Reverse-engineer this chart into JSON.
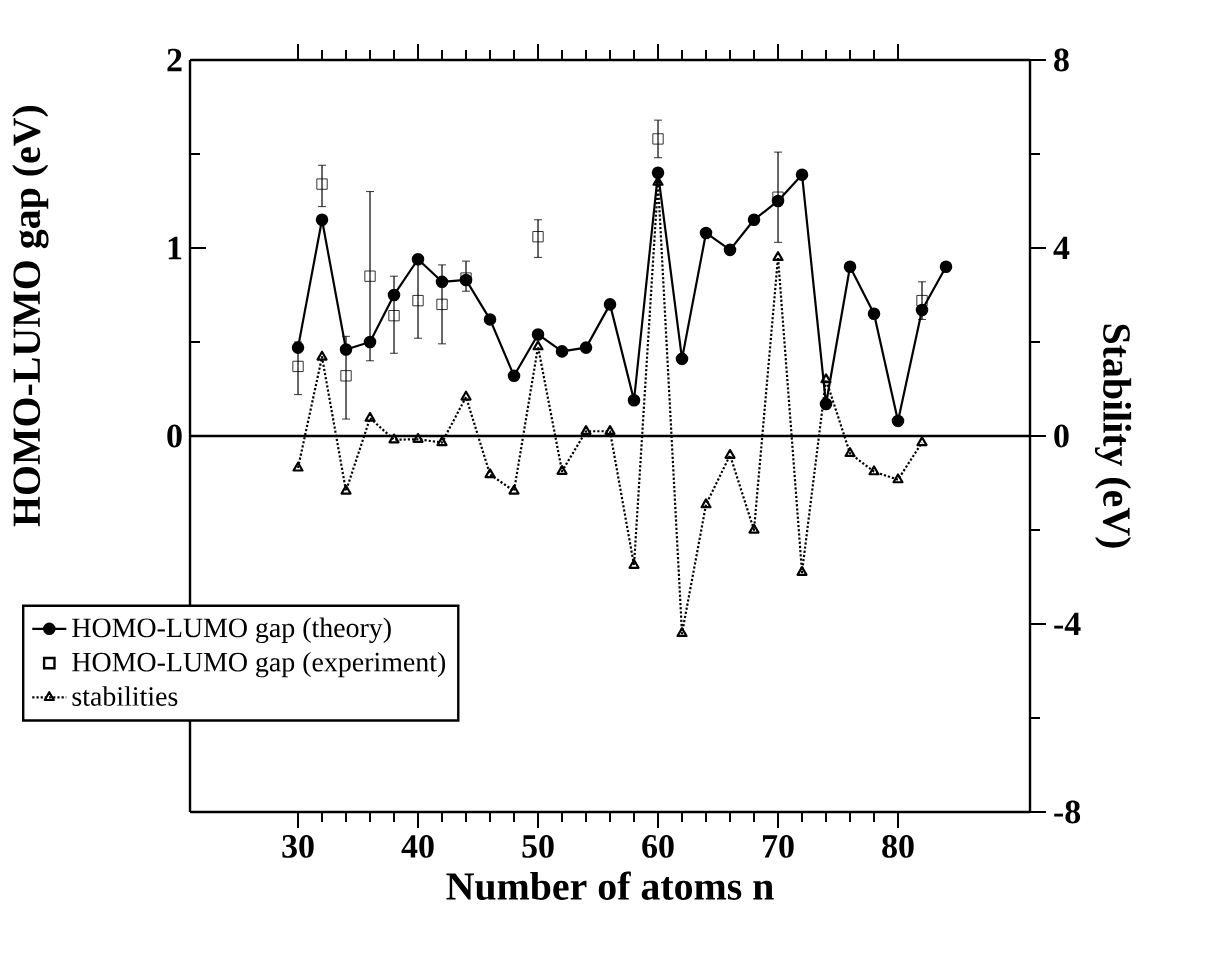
{
  "chart_data": {
    "type": "line",
    "xlabel": "Number of atoms n",
    "ylabel": "HOMO-LUMO gap (eV)",
    "y2label": "Stability (eV)",
    "xlim": [
      21,
      91
    ],
    "xticks": [
      30,
      40,
      50,
      60,
      70,
      80
    ],
    "ylim": [
      -2,
      2
    ],
    "yticks": [
      0,
      1,
      2
    ],
    "y2lim": [
      -8,
      8
    ],
    "y2ticks": [
      -8,
      -4,
      0,
      4,
      8
    ],
    "legend": "bottom left",
    "grid": false,
    "ref_lines": [
      {
        "axis": "y",
        "value": 0,
        "line_style": "solid"
      }
    ],
    "series": [
      {
        "name": "HOMO-LUMO gap (theory)",
        "color": "#000000",
        "marker": "circle",
        "line_style": "solid",
        "x": [
          30,
          32,
          34,
          36,
          38,
          40,
          42,
          44,
          46,
          48,
          50,
          52,
          54,
          56,
          58,
          60,
          62,
          64,
          66,
          68,
          70,
          72,
          74,
          76,
          78,
          80,
          82,
          84
        ],
        "values": [
          0.47,
          1.15,
          0.46,
          0.5,
          0.75,
          0.94,
          0.82,
          0.83,
          0.62,
          0.32,
          0.54,
          0.45,
          0.47,
          0.7,
          0.19,
          1.4,
          0.41,
          1.08,
          0.99,
          1.15,
          1.25,
          1.39,
          0.17,
          0.9,
          0.65,
          0.08,
          0.67,
          0.9
        ]
      },
      {
        "name": "HOMO-LUMO gap (experiment)",
        "type": "scatter",
        "color": "#000000",
        "marker": "square",
        "x": [
          30,
          32,
          34,
          36,
          38,
          40,
          42,
          44,
          50,
          60,
          70,
          82
        ],
        "values": [
          0.37,
          1.34,
          0.32,
          0.85,
          0.64,
          0.72,
          0.7,
          0.84,
          1.06,
          1.58,
          1.27,
          0.72
        ],
        "errors": [
          [
            0.22,
            0.5
          ],
          [
            1.22,
            1.44
          ],
          [
            0.09,
            0.53
          ],
          [
            0.4,
            1.3
          ],
          [
            0.44,
            0.85
          ],
          [
            0.52,
            0.94
          ],
          [
            0.49,
            0.91
          ],
          [
            0.77,
            0.93
          ],
          [
            0.95,
            1.15
          ],
          [
            1.48,
            1.68
          ],
          [
            1.03,
            1.51
          ],
          [
            0.62,
            0.82
          ]
        ]
      },
      {
        "name": "stabilities",
        "axis": "y2",
        "color": "#000000",
        "marker": "triangle",
        "line_style": "dotted",
        "x": [
          30,
          32,
          34,
          36,
          38,
          40,
          42,
          44,
          46,
          48,
          50,
          52,
          54,
          56,
          58,
          60,
          62,
          64,
          66,
          68,
          70,
          72,
          74,
          76,
          78,
          80,
          82
        ],
        "values": [
          -0.68,
          1.68,
          -1.17,
          0.38,
          -0.08,
          -0.07,
          -0.14,
          0.83,
          -0.82,
          -1.17,
          1.9,
          -0.75,
          0.1,
          0.1,
          -2.75,
          5.4,
          -4.2,
          -1.46,
          -0.41,
          -2.0,
          3.8,
          -2.9,
          1.2,
          -0.37,
          -0.76,
          -0.93,
          -0.14
        ]
      }
    ]
  }
}
